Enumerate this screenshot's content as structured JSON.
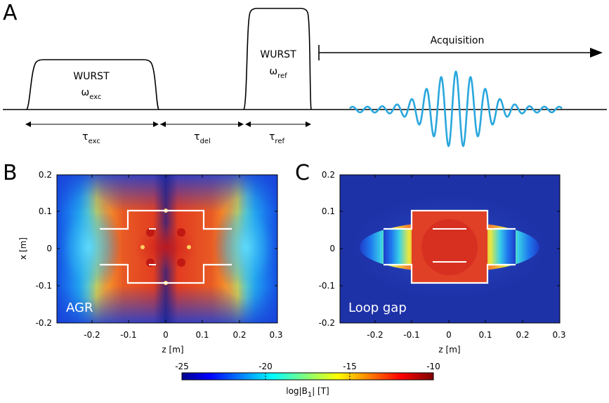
{
  "panel_a": {
    "letter": "A",
    "exc_pulse": {
      "name": "WURST",
      "omega": "ω",
      "omega_sub": "exc"
    },
    "ref_pulse": {
      "name": "WURST",
      "omega": "ω",
      "omega_sub": "ref"
    },
    "acquisition_label": "Acquisition",
    "timing": [
      {
        "symbol": "τ",
        "sub": "exc"
      },
      {
        "symbol": "τ",
        "sub": "del"
      },
      {
        "symbol": "τ",
        "sub": "ref"
      }
    ],
    "signal_color": "#2aa7dd"
  },
  "panel_b": {
    "letter": "B",
    "name": "AGR",
    "x_ticks": [
      "-0.2",
      "-0.1",
      "0",
      "0.1",
      "0.2",
      "0.3"
    ],
    "y_ticks": [
      "0.2",
      "0.1",
      "0",
      "-0.1",
      "-0.2"
    ],
    "xlabel": "z [m]",
    "ylabel": "x [m]"
  },
  "panel_c": {
    "letter": "C",
    "name": "Loop gap",
    "x_ticks": [
      "-0.2",
      "-0.1",
      "0",
      "0.1",
      "0.2",
      "0.3"
    ],
    "y_ticks": [
      "0.2",
      "0.1",
      "0",
      "-0.1",
      "-0.2"
    ],
    "xlabel": "z [m]"
  },
  "colorbar": {
    "ticks": [
      "-25",
      "-20",
      "-15",
      "-10"
    ],
    "label": "log|B",
    "label_sub": "1",
    "label_tail": "| [T]",
    "range": [
      -25,
      -10
    ]
  }
}
